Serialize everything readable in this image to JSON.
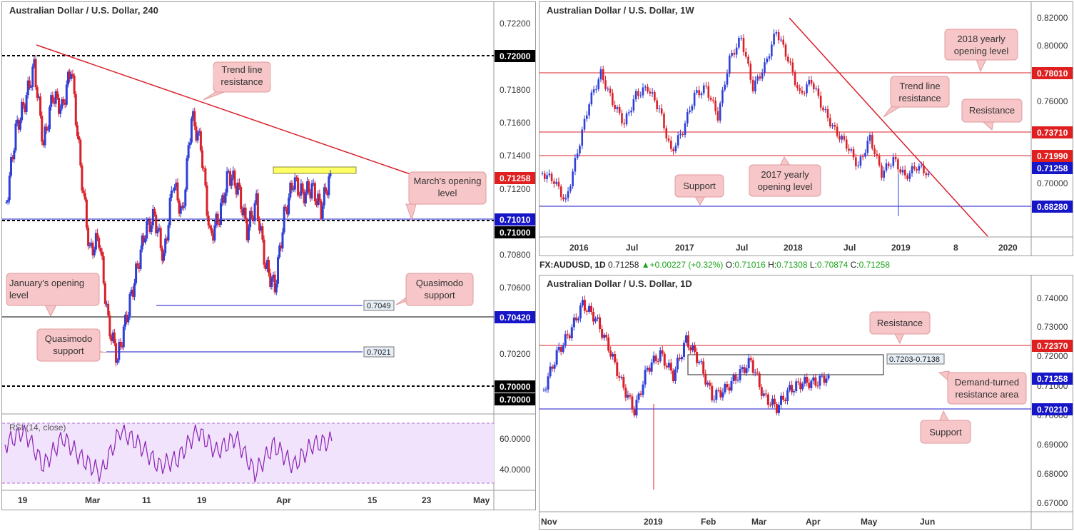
{
  "colors": {
    "bull": "#2f3fd6",
    "bear": "#d9202a",
    "red_line": "#d9202a",
    "blue_line": "#1616c8",
    "callout_bg": "#f7c6c8",
    "callout_border": "#e09a9e",
    "rsi_line": "#8b22b6",
    "rsi_bg": "#f1e3fb"
  },
  "panels": {
    "h4": {
      "title": "Australian Dollar / U.S. Dollar, 240",
      "rsi_label": "RSI (14, close)",
      "x_labels": [
        "19",
        "Mar",
        "11",
        "19",
        "Apr",
        "15",
        "23",
        "May"
      ],
      "price_labels": [
        "0.72200",
        "0.71800",
        "0.71600",
        "0.71400",
        "0.71200",
        "0.70800",
        "0.70600",
        "0.70200"
      ],
      "rsi_labels": [
        "60.0000",
        "40.0000"
      ],
      "level_tags": [
        {
          "text": "0.72000",
          "color": "#000000"
        },
        {
          "text": "0.71258",
          "color": "#e02020"
        },
        {
          "text": "0.71010",
          "color": "#1616c8"
        },
        {
          "text": "0.71000",
          "color": "#000000"
        },
        {
          "text": "0.70420",
          "color": "#1616c8"
        },
        {
          "text": "0.70000",
          "color": "#000000"
        },
        {
          "text": "0.70000",
          "color": "#000000"
        }
      ],
      "level_boxes": [
        "0.7049",
        "0.7021"
      ],
      "callouts": [
        "Trend line resistance",
        "March's opening level",
        "January's opening level",
        "Quasimodo support",
        "Quasimodo support"
      ]
    },
    "weekly": {
      "title": "Australian Dollar / U.S. Dollar, 1W",
      "x_labels": [
        "2016",
        "Jul",
        "2017",
        "Jul",
        "2018",
        "Jul",
        "2019",
        "8",
        "2020"
      ],
      "price_labels": [
        "0.82000",
        "0.80000",
        "0.76000",
        "0.70000"
      ],
      "level_tags": [
        {
          "text": "0.78010",
          "color": "#e02020"
        },
        {
          "text": "0.73710",
          "color": "#e02020"
        },
        {
          "text": "0.71990",
          "color": "#e02020"
        },
        {
          "text": "0.71258",
          "color": "#1616c8"
        },
        {
          "text": "0.68280",
          "color": "#1616c8"
        }
      ],
      "callouts": [
        "2018 yearly opening level",
        "Trend line resistance",
        "Resistance",
        "Support",
        "2017 yearly opening level"
      ]
    },
    "daily": {
      "ohlc": {
        "symbol": "FX:AUDUSD, 1D",
        "last": "0.71258",
        "change": "+0.00227 (+0.32%)",
        "o": "0.71016",
        "h": "0.71308",
        "l": "0.70874",
        "c": "0.71258",
        "o_label": "O:",
        "h_label": "H:",
        "l_label": "L:",
        "c_label": "C:"
      },
      "title": "Australian Dollar / U.S. Dollar, 1D",
      "x_labels": [
        "Nov",
        "2019",
        "Feb",
        "Mar",
        "Apr",
        "May",
        "Jun"
      ],
      "price_labels": [
        "0.74000",
        "0.73000",
        "0.72000",
        "0.71000",
        "0.70000",
        "0.69000",
        "0.68000",
        "0.67000"
      ],
      "level_tags": [
        {
          "text": "0.72370",
          "color": "#e02020"
        },
        {
          "text": "0.71258",
          "color": "#1616c8"
        },
        {
          "text": "0.70210",
          "color": "#1616c8"
        }
      ],
      "level_boxes": [
        "0.7203-0.7138"
      ],
      "callouts": [
        "Resistance",
        "Demand-turned resistance area",
        "Support"
      ]
    }
  },
  "chart_data": [
    {
      "type": "candlestick",
      "title": "Australian Dollar / U.S. Dollar, 240",
      "ylim": [
        0.6993,
        0.7238
      ],
      "horizontal_levels": [
        0.72,
        0.71258,
        0.7101,
        0.71,
        0.7049,
        0.7042,
        0.7021,
        0.7
      ],
      "trend_line": [
        [
          0.7205,
          0.7133
        ]
      ],
      "x_ticks": [
        "19",
        "Mar",
        "11",
        "19",
        "Apr",
        "15",
        "23",
        "May"
      ],
      "indicator": {
        "name": "RSI (14, close)",
        "ticks": [
          60,
          40
        ]
      }
    },
    {
      "type": "candlestick",
      "title": "Australian Dollar / U.S. Dollar, 1W",
      "ylim": [
        0.6625,
        0.825
      ],
      "horizontal_levels": [
        0.7801,
        0.7371,
        0.7199,
        0.71258,
        0.6828
      ],
      "x_ticks": [
        "2016",
        "Jul",
        "2017",
        "Jul",
        "2018",
        "Jul",
        "2019",
        "8",
        "2020"
      ]
    },
    {
      "type": "candlestick",
      "title": "Australian Dollar / U.S. Dollar, 1D",
      "ylim": [
        0.667,
        0.746
      ],
      "horizontal_levels": [
        0.7237,
        0.71258,
        0.7021
      ],
      "zone": [
        0.7203,
        0.7138
      ],
      "x_ticks": [
        "Nov",
        "2019",
        "Feb",
        "Mar",
        "Apr",
        "May",
        "Jun"
      ]
    }
  ]
}
